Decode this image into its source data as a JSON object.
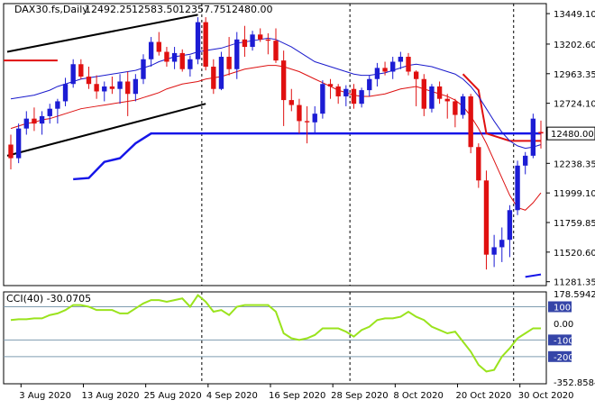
{
  "chart_data": [
    {
      "type": "candlestick",
      "title": "DAX30.fs,Daily",
      "header_values": [
        "12492.25",
        "12583.50",
        "12357.75",
        "12480.00"
      ],
      "last_price": 12480,
      "last_price_label": "12480.00",
      "yticks": [
        {
          "value": 13449.1,
          "label": "13449.10"
        },
        {
          "value": 13202.6,
          "label": "13202.60"
        },
        {
          "value": 12963.35,
          "label": "12963.35"
        },
        {
          "value": 12724.1,
          "label": "12724.10"
        },
        {
          "value": 12238.35,
          "label": "12238.35"
        },
        {
          "value": 11999.1,
          "label": "11999.10"
        },
        {
          "value": 11759.85,
          "label": "11759.85"
        },
        {
          "value": 11520.6,
          "label": "11520.60"
        },
        {
          "value": 11281.35,
          "label": "11281.35"
        }
      ],
      "ylim": [
        11250,
        13530
      ],
      "xticks": [
        "3 Aug 2020",
        "13 Aug 2020",
        "25 Aug 2020",
        "4 Sep 2020",
        "16 Sep 2020",
        "28 Sep 2020",
        "8 Oct 2020",
        "20 Oct 2020",
        "30 Oct 2020"
      ],
      "xtick_bar_index": [
        2,
        10,
        18,
        26,
        34,
        42,
        50,
        58,
        66
      ],
      "candles": [
        [
          12390,
          12470,
          12190,
          12280
        ],
        [
          12280,
          12560,
          12240,
          12520
        ],
        [
          12520,
          12660,
          12470,
          12600
        ],
        [
          12600,
          12690,
          12500,
          12560
        ],
        [
          12560,
          12660,
          12470,
          12620
        ],
        [
          12620,
          12720,
          12560,
          12680
        ],
        [
          12680,
          12760,
          12560,
          12740
        ],
        [
          12740,
          12930,
          12700,
          12880
        ],
        [
          12880,
          13080,
          12850,
          13040
        ],
        [
          13040,
          13080,
          12920,
          12940
        ],
        [
          12940,
          13020,
          12840,
          12880
        ],
        [
          12880,
          12950,
          12760,
          12820
        ],
        [
          12820,
          12900,
          12740,
          12860
        ],
        [
          12860,
          12940,
          12800,
          12840
        ],
        [
          12840,
          12960,
          12720,
          12900
        ],
        [
          12900,
          12980,
          12620,
          12800
        ],
        [
          12800,
          12960,
          12740,
          12920
        ],
        [
          12920,
          13120,
          12880,
          13080
        ],
        [
          13080,
          13260,
          13020,
          13220
        ],
        [
          13220,
          13300,
          13110,
          13140
        ],
        [
          13140,
          13180,
          13020,
          13060
        ],
        [
          13060,
          13180,
          13000,
          13130
        ],
        [
          13130,
          13160,
          12980,
          13000
        ],
        [
          13000,
          13110,
          12940,
          13080
        ],
        [
          13080,
          13420,
          13040,
          13380
        ],
        [
          13380,
          13420,
          12990,
          13020
        ],
        [
          13020,
          13080,
          12800,
          12840
        ],
        [
          12840,
          13140,
          12830,
          13100
        ],
        [
          13100,
          13260,
          12950,
          13000
        ],
        [
          13000,
          13300,
          12920,
          13240
        ],
        [
          13240,
          13350,
          13100,
          13180
        ],
        [
          13180,
          13310,
          13150,
          13280
        ],
        [
          13280,
          13330,
          13220,
          13240
        ],
        [
          13240,
          13290,
          13120,
          13230
        ],
        [
          13230,
          13330,
          13050,
          13070
        ],
        [
          13070,
          13150,
          12540,
          12750
        ],
        [
          12750,
          12840,
          12660,
          12710
        ],
        [
          12710,
          12760,
          12480,
          12580
        ],
        [
          12580,
          12700,
          12400,
          12570
        ],
        [
          12570,
          12700,
          12480,
          12640
        ],
        [
          12640,
          12910,
          12600,
          12880
        ],
        [
          12880,
          12920,
          12760,
          12860
        ],
        [
          12860,
          12880,
          12720,
          12780
        ],
        [
          12780,
          12870,
          12700,
          12840
        ],
        [
          12840,
          12880,
          12680,
          12720
        ],
        [
          12720,
          12850,
          12690,
          12830
        ],
        [
          12830,
          12950,
          12780,
          12920
        ],
        [
          12920,
          13050,
          12860,
          13010
        ],
        [
          13010,
          13060,
          12950,
          12980
        ],
        [
          12980,
          13100,
          12920,
          13060
        ],
        [
          13060,
          13140,
          13000,
          13100
        ],
        [
          13100,
          13130,
          12950,
          12980
        ],
        [
          12980,
          12990,
          12700,
          12920
        ],
        [
          12920,
          12960,
          12620,
          12680
        ],
        [
          12680,
          12880,
          12650,
          12860
        ],
        [
          12860,
          12900,
          12720,
          12760
        ],
        [
          12760,
          12800,
          12600,
          12740
        ],
        [
          12740,
          12760,
          12530,
          12630
        ],
        [
          12630,
          12800,
          12600,
          12780
        ],
        [
          12780,
          12800,
          12320,
          12370
        ],
        [
          12370,
          12400,
          12040,
          12100
        ],
        [
          12100,
          12180,
          11380,
          11500
        ],
        [
          11500,
          11660,
          11400,
          11560
        ],
        [
          11560,
          11720,
          11440,
          11620
        ],
        [
          11620,
          11900,
          11480,
          11860
        ],
        [
          11860,
          12260,
          11820,
          12220
        ],
        [
          12220,
          12330,
          12150,
          12300
        ],
        [
          12300,
          12640,
          12280,
          12600
        ],
        [
          12492.25,
          12583.5,
          12357.75,
          12480
        ]
      ],
      "ma_fast": [
        12760,
        12770,
        12780,
        12790,
        12810,
        12830,
        12860,
        12880,
        12900,
        12920,
        12930,
        12940,
        12950,
        12960,
        12970,
        12980,
        12990,
        13010,
        13030,
        13060,
        13080,
        13100,
        13110,
        13120,
        13140,
        13150,
        13160,
        13170,
        13190,
        13210,
        13220,
        13230,
        13240,
        13250,
        13240,
        13210,
        13180,
        13140,
        13100,
        13060,
        13040,
        13020,
        13000,
        12980,
        12960,
        12950,
        12950,
        12960,
        12970,
        12990,
        13010,
        13030,
        13040,
        13030,
        13020,
        13000,
        12980,
        12960,
        12920,
        12860,
        12780,
        12680,
        12580,
        12490,
        12420,
        12380,
        12360,
        12370,
        12390
      ],
      "ma_slow": [
        12520,
        12540,
        12560,
        12570,
        12590,
        12600,
        12620,
        12640,
        12660,
        12680,
        12690,
        12700,
        12710,
        12720,
        12730,
        12740,
        12750,
        12770,
        12790,
        12810,
        12840,
        12860,
        12880,
        12890,
        12900,
        12920,
        12930,
        12940,
        12960,
        12980,
        13000,
        13010,
        13020,
        13030,
        13030,
        13020,
        13000,
        12980,
        12950,
        12920,
        12890,
        12860,
        12830,
        12810,
        12790,
        12780,
        12780,
        12790,
        12800,
        12820,
        12840,
        12850,
        12860,
        12840,
        12820,
        12800,
        12780,
        12750,
        12700,
        12620,
        12520,
        12400,
        12260,
        12120,
        11980,
        11880,
        11860,
        11920,
        12000
      ],
      "hline_upper_start_red": {
        "value": 13070,
        "from": 0,
        "to": 6
      },
      "support_blue": [
        [
          8,
          12110
        ],
        [
          10,
          12120
        ],
        [
          12,
          12250
        ],
        [
          14,
          12280
        ],
        [
          16,
          12400
        ],
        [
          18,
          12480
        ],
        [
          20,
          12480
        ],
        [
          68,
          12480
        ]
      ],
      "trend_upper": [
        [
          0,
          13140
        ],
        [
          24,
          13440
        ]
      ],
      "trend_lower": [
        [
          0,
          12300
        ],
        [
          25,
          12720
        ]
      ],
      "red_resistance": [
        [
          58,
          12960
        ],
        [
          60,
          12830
        ],
        [
          61,
          12480
        ],
        [
          64,
          12420
        ],
        [
          68,
          12420
        ]
      ],
      "blue_lower_stub": [
        [
          66,
          11320
        ],
        [
          68,
          11340
        ]
      ],
      "vlines": [
        24,
        43,
        64
      ],
      "cci": {
        "label": "CCI(40) -30.0705",
        "yticks": [
          {
            "value": 178.5942,
            "label": "178.5942"
          },
          {
            "value": 100,
            "label": "100"
          },
          {
            "value": 0,
            "label": "0.00"
          },
          {
            "value": -100,
            "label": "-100"
          },
          {
            "value": -200,
            "label": "-200"
          },
          {
            "value": -352.8584,
            "label": "-352.8584"
          }
        ],
        "ylim": [
          -352.8584,
          178.5942
        ],
        "levels": [
          100,
          -100,
          -200
        ],
        "values": [
          20,
          25,
          25,
          30,
          30,
          50,
          60,
          80,
          110,
          110,
          100,
          80,
          80,
          80,
          60,
          60,
          90,
          120,
          140,
          140,
          130,
          140,
          150,
          100,
          170,
          130,
          70,
          80,
          50,
          100,
          110,
          110,
          110,
          110,
          70,
          -60,
          -90,
          -100,
          -90,
          -70,
          -30,
          -30,
          -30,
          -50,
          -80,
          -40,
          -20,
          20,
          30,
          30,
          40,
          70,
          40,
          20,
          -20,
          -40,
          -60,
          -50,
          -110,
          -170,
          -250,
          -290,
          -280,
          -200,
          -150,
          -90,
          -60,
          -30,
          -30
        ]
      },
      "colors": {
        "bull": "#1c1cd4",
        "bear": "#e01010",
        "ma_fast": "#1a1acc",
        "ma_slow": "#dd1111",
        "support": "#1616e8",
        "trend": "#000000",
        "cci": "#9ae31d",
        "grid": "#000000",
        "price_label_bg": "#ffffff",
        "level_label_bg": "#3545a8"
      }
    }
  ]
}
